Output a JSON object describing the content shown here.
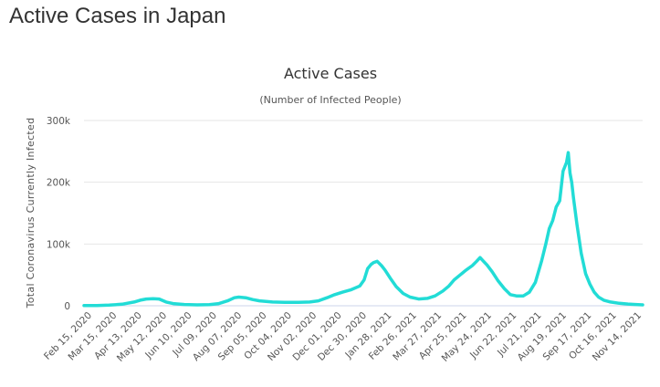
{
  "page": {
    "title": "Active Cases in Japan"
  },
  "chart_data": {
    "type": "line",
    "title": "Active Cases",
    "subtitle": "(Number of Infected People)",
    "xlabel": "",
    "ylabel": "Total Coronavirus Currently Infected",
    "ylim": [
      0,
      300000
    ],
    "yticks": [
      {
        "value": 0,
        "label": "0"
      },
      {
        "value": 100000,
        "label": "100k"
      },
      {
        "value": 200000,
        "label": "200k"
      },
      {
        "value": 300000,
        "label": "300k"
      }
    ],
    "categories": [
      "Feb 15, 2020",
      "Mar 15, 2020",
      "Apr 13, 2020",
      "May 12, 2020",
      "Jun 10, 2020",
      "Jul 09, 2020",
      "Aug 07, 2020",
      "Sep 05, 2020",
      "Oct 04, 2020",
      "Nov 02, 2020",
      "Dec 01, 2020",
      "Dec 30, 2020",
      "Jan 28, 2021",
      "Feb 26, 2021",
      "Mar 27, 2021",
      "Apr 25, 2021",
      "May 24, 2021",
      "Jun 22, 2021",
      "Jul 21, 2021",
      "Aug 19, 2021",
      "Sep 17, 2021",
      "Oct 16, 2021",
      "Nov 14, 2021"
    ],
    "grid": true,
    "legend": "none",
    "color": "#22dcd6",
    "series": [
      {
        "x": [
          "2020-02-15",
          "2020-03-01",
          "2020-03-15",
          "2020-03-30",
          "2020-04-13",
          "2020-04-20",
          "2020-04-27",
          "2020-05-05",
          "2020-05-12",
          "2020-05-20",
          "2020-05-28",
          "2020-06-10",
          "2020-06-25",
          "2020-07-09",
          "2020-07-20",
          "2020-07-30",
          "2020-08-07",
          "2020-08-12",
          "2020-08-20",
          "2020-08-28",
          "2020-09-05",
          "2020-09-20",
          "2020-10-04",
          "2020-10-20",
          "2020-11-02",
          "2020-11-12",
          "2020-11-22",
          "2020-12-01",
          "2020-12-10",
          "2020-12-20",
          "2020-12-30",
          "2021-01-04",
          "2021-01-08",
          "2021-01-12",
          "2021-01-15",
          "2021-01-19",
          "2021-01-24",
          "2021-01-28",
          "2021-02-03",
          "2021-02-10",
          "2021-02-18",
          "2021-02-26",
          "2021-03-08",
          "2021-03-18",
          "2021-03-27",
          "2021-04-05",
          "2021-04-12",
          "2021-04-18",
          "2021-04-25",
          "2021-05-02",
          "2021-05-09",
          "2021-05-14",
          "2021-05-18",
          "2021-05-22",
          "2021-05-26",
          "2021-06-01",
          "2021-06-08",
          "2021-06-15",
          "2021-06-22",
          "2021-06-29",
          "2021-07-07",
          "2021-07-14",
          "2021-07-21",
          "2021-07-28",
          "2021-08-02",
          "2021-08-06",
          "2021-08-10",
          "2021-08-14",
          "2021-08-18",
          "2021-08-22",
          "2021-08-26",
          "2021-08-28",
          "2021-08-30",
          "2021-09-01",
          "2021-09-03",
          "2021-09-07",
          "2021-09-12",
          "2021-09-17",
          "2021-09-22",
          "2021-09-27",
          "2021-10-02",
          "2021-10-08",
          "2021-10-16",
          "2021-10-26",
          "2021-11-05",
          "2021-11-14",
          "2021-11-22"
        ],
        "values": [
          300,
          500,
          1000,
          2500,
          6000,
          9000,
          11000,
          11500,
          11000,
          6000,
          3500,
          2000,
          1500,
          1800,
          3500,
          8000,
          13000,
          14000,
          13000,
          10000,
          8000,
          6000,
          5500,
          5500,
          6000,
          8000,
          13000,
          18000,
          22000,
          26000,
          32000,
          42000,
          60000,
          67000,
          70000,
          72000,
          65000,
          58000,
          45000,
          31000,
          20000,
          14000,
          11000,
          12000,
          16000,
          24000,
          32000,
          42000,
          50000,
          58000,
          65000,
          72000,
          78000,
          72000,
          66000,
          55000,
          40000,
          28000,
          18000,
          16000,
          16000,
          22000,
          38000,
          72000,
          100000,
          125000,
          138000,
          160000,
          170000,
          218000,
          232000,
          248000,
          215000,
          200000,
          175000,
          132000,
          85000,
          52000,
          35000,
          22000,
          14000,
          9000,
          6000,
          4000,
          2800,
          2000,
          1500
        ]
      }
    ]
  }
}
